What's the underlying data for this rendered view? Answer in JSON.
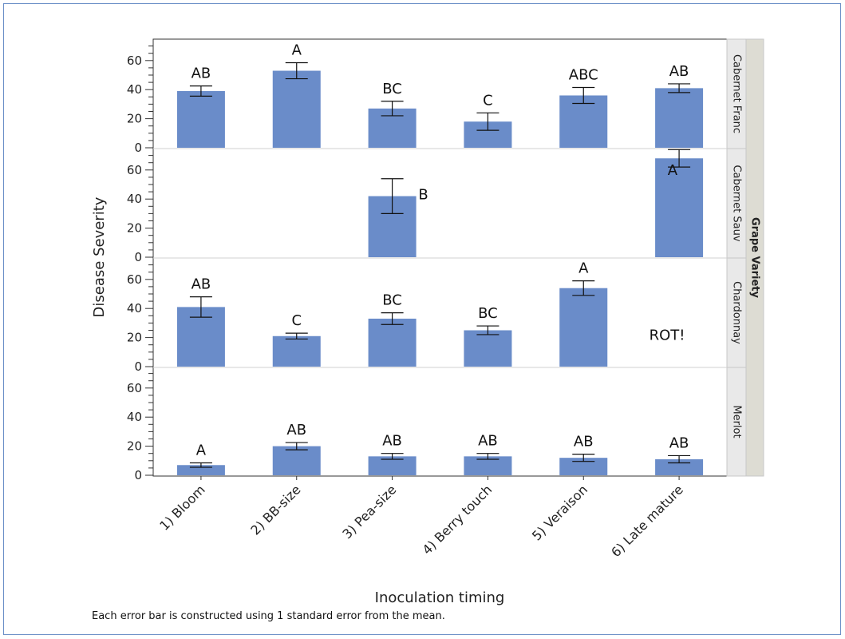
{
  "chart_data": {
    "type": "bar",
    "xlabel": "Inoculation timing",
    "ylabel": "Disease Severity",
    "facet_label": "Grape Variety",
    "footnote": "Each error bar is constructed using 1 standard error from the mean.",
    "categories": [
      "1) Bloom",
      "2) BB-size",
      "3) Pea-size",
      "4) Berry touch",
      "5) Veraison",
      "6) Late mature"
    ],
    "ylim": [
      0,
      70
    ],
    "yticks": [
      0,
      20,
      40,
      60
    ],
    "bar_color": "#6a8cc9",
    "panels": [
      {
        "name": "Cabernet Franc",
        "values": [
          39,
          53,
          27,
          18,
          36,
          41
        ],
        "errors": [
          3.5,
          5.5,
          5,
          6,
          5.5,
          3
        ],
        "letters": [
          "AB",
          "A",
          "BC",
          "C",
          "ABC",
          "AB"
        ]
      },
      {
        "name": "Cabernet Sauv",
        "values": [
          null,
          null,
          42,
          null,
          null,
          68
        ],
        "errors": [
          null,
          null,
          12,
          null,
          null,
          6
        ],
        "letters": [
          "",
          "",
          "B",
          "",
          "",
          "A"
        ]
      },
      {
        "name": "Chardonnay",
        "values": [
          41,
          21,
          33,
          25,
          54,
          null
        ],
        "errors": [
          7,
          2,
          4,
          3,
          5,
          null
        ],
        "letters": [
          "AB",
          "C",
          "BC",
          "BC",
          "A",
          ""
        ],
        "annotation": "ROT!"
      },
      {
        "name": "Merlot",
        "values": [
          7,
          20,
          13,
          13,
          12,
          11
        ],
        "errors": [
          1.5,
          2.5,
          2,
          2,
          2.5,
          2.5
        ],
        "letters": [
          "A",
          "AB",
          "AB",
          "AB",
          "AB",
          "AB"
        ]
      }
    ]
  }
}
